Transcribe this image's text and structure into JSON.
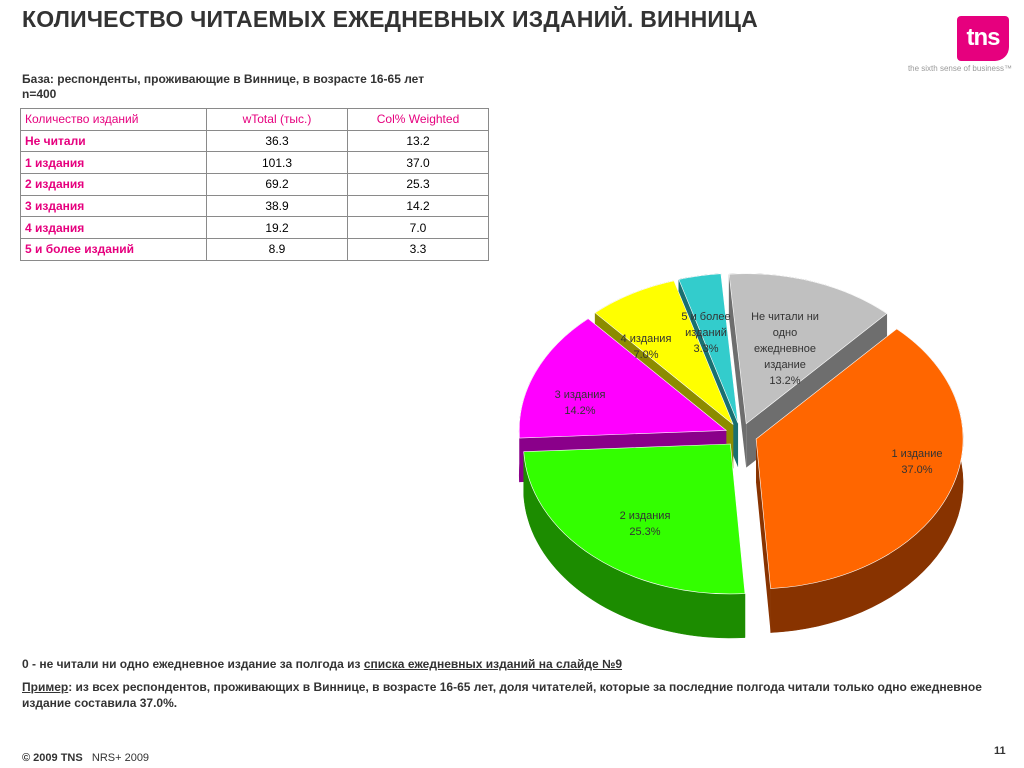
{
  "slide": {
    "title": "КОЛИЧЕСТВО ЧИТАЕМЫХ ЕЖЕДНЕВНЫХ ИЗДАНИЙ. ВИННИЦА",
    "logo_text": "tns",
    "tagline": "the sixth sense of business™",
    "base_line1": "База: респонденты, проживающие в Виннице, в возрасте 16-65 лет",
    "base_line2": "n=400",
    "page_number": "11"
  },
  "colors": {
    "accent": "#e6007e",
    "text": "#333333"
  },
  "table": {
    "headers": [
      "Количество изданий",
      "wTotal (тыс.)",
      "Col% Weighted"
    ],
    "rows": [
      {
        "label": "Не читали",
        "wtotal": "36.3",
        "colpct": "13.2"
      },
      {
        "label": "1 издания",
        "wtotal": "101.3",
        "colpct": "37.0"
      },
      {
        "label": "2 издания",
        "wtotal": "69.2",
        "colpct": "25.3"
      },
      {
        "label": "3 издания",
        "wtotal": "38.9",
        "colpct": "14.2"
      },
      {
        "label": "4 издания",
        "wtotal": "19.2",
        "colpct": "7.0"
      },
      {
        "label": "5 и более изданий",
        "wtotal": "8.9",
        "colpct": "3.3"
      }
    ]
  },
  "chart_data": {
    "type": "pie",
    "title": "",
    "slices": [
      {
        "label": "Не читали ни одно ежедневное издание",
        "value": 13.2,
        "value_label": "13.2%",
        "color": "#c0c0c0",
        "side_color": "#6e6e6e"
      },
      {
        "label": "1 издание",
        "value": 37.0,
        "value_label": "37.0%",
        "color": "#ff6600",
        "side_color": "#883300"
      },
      {
        "label": "2 издания",
        "value": 25.3,
        "value_label": "25.3%",
        "color": "#33ff00",
        "side_color": "#1c8c00"
      },
      {
        "label": "3 издания",
        "value": 14.2,
        "value_label": "14.2%",
        "color": "#ff00ff",
        "side_color": "#8a008a"
      },
      {
        "label": "4 издания",
        "value": 7.0,
        "value_label": "7.0%",
        "color": "#ffff00",
        "side_color": "#8c8c00"
      },
      {
        "label": "5 и более изданий",
        "value": 3.3,
        "value_label": "3.3%",
        "color": "#33cccc",
        "side_color": "#1a7070"
      }
    ]
  },
  "notes": {
    "note1_main": "0 - не читали ни одно ежедневное издание за полгода из ",
    "note1_link": "списка ежедневных изданий на слайде №9",
    "note2_label": "Пример",
    "note2_text": ":  из всех респондентов, проживающих в Виннице, в возрасте 16-65 лет, доля читателей, которые за последние полгода читали только одно ежедневное издание составила  37.0%."
  },
  "footer": {
    "copyright": "© 2009 TNS",
    "source": "NRS+ 2009"
  }
}
